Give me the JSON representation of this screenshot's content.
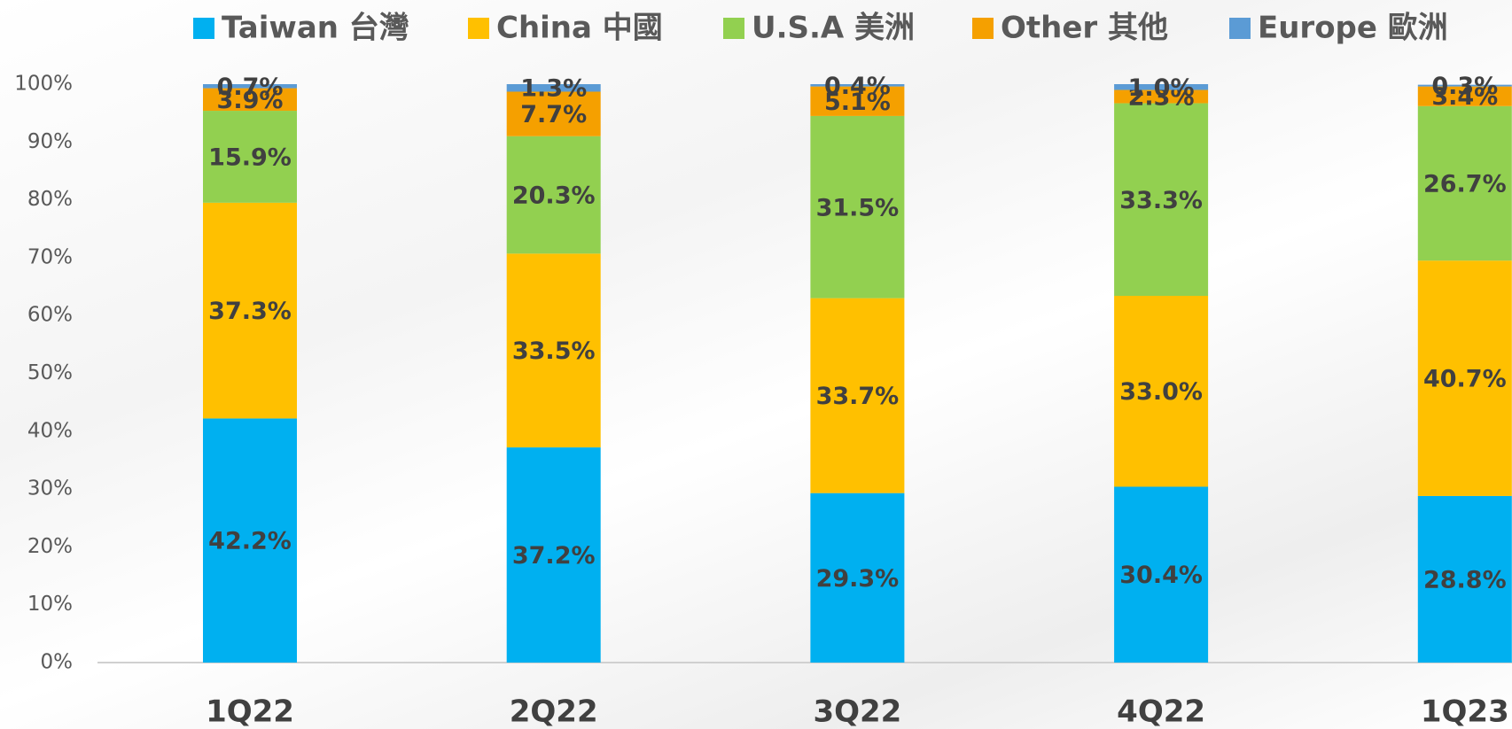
{
  "chart_data": {
    "type": "stacked_bar",
    "categories": [
      "1Q22",
      "2Q22",
      "3Q22",
      "4Q22",
      "1Q23"
    ],
    "series": [
      {
        "name": "Taiwan 台灣",
        "color": "#00b0f0",
        "values": [
          42.2,
          37.2,
          29.3,
          30.4,
          28.8
        ],
        "value_labels": [
          "42.2%",
          "37.2%",
          "29.3%",
          "30.4%",
          "28.8%"
        ]
      },
      {
        "name": "China 中國",
        "color": "#ffc000",
        "values": [
          37.3,
          33.5,
          33.7,
          33.0,
          40.7
        ],
        "value_labels": [
          "37.3%",
          "33.5%",
          "33.7%",
          "33.0%",
          "40.7%"
        ]
      },
      {
        "name": "U.S.A 美洲",
        "color": "#92d050",
        "values": [
          15.9,
          20.3,
          31.5,
          33.3,
          26.7
        ],
        "value_labels": [
          "15.9%",
          "20.3%",
          "31.5%",
          "33.3%",
          "26.7%"
        ]
      },
      {
        "name": "Other 其他",
        "color": "#f5a000",
        "values": [
          3.9,
          7.7,
          5.1,
          2.3,
          3.4
        ],
        "value_labels": [
          "3.9%",
          "7.7%",
          "5.1%",
          "2.3%",
          "3.4%"
        ]
      },
      {
        "name": "Europe 歐洲",
        "color": "#5b9bd5",
        "values": [
          0.7,
          1.3,
          0.4,
          1.0,
          0.3
        ],
        "value_labels": [
          "0.7%",
          "1.3%",
          "0.4%",
          "1.0%",
          "0.3%"
        ]
      }
    ],
    "ylim": [
      0,
      100
    ],
    "yticks": [
      {
        "value": 0,
        "label": "0%"
      },
      {
        "value": 10,
        "label": "10%"
      },
      {
        "value": 20,
        "label": "20%"
      },
      {
        "value": 30,
        "label": "30%"
      },
      {
        "value": 40,
        "label": "40%"
      },
      {
        "value": 50,
        "label": "50%"
      },
      {
        "value": 60,
        "label": "60%"
      },
      {
        "value": 70,
        "label": "70%"
      },
      {
        "value": 80,
        "label": "80%"
      },
      {
        "value": 90,
        "label": "90%"
      },
      {
        "value": 100,
        "label": "100%"
      }
    ],
    "legend": "top"
  }
}
